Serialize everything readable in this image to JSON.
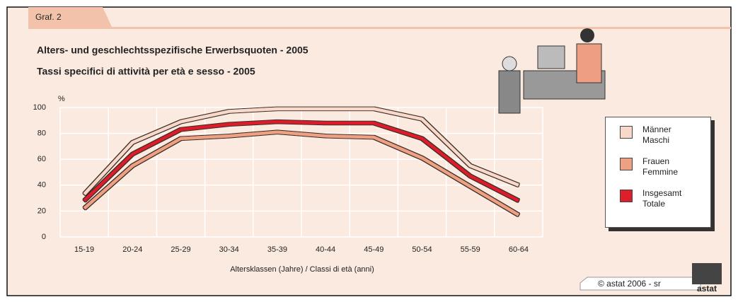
{
  "chart_data": {
    "type": "line",
    "tab": "Graf. 2",
    "title": "Alters- und geschlechtsspezifische Erwerbsquoten - 2005",
    "subtitle": "Tassi specifici di attività per età e sesso - 2005",
    "y_label": "%",
    "x_label": "Altersklassen (Jahre) / Classi di età (anni)",
    "credit": "© astat 2006 - sr",
    "logo": "astat",
    "categories": [
      "15-19",
      "20-24",
      "25-29",
      "30-34",
      "35-39",
      "40-44",
      "45-49",
      "50-54",
      "55-59",
      "60-64"
    ],
    "series": [
      {
        "name": "Männer Maschi",
        "color": "#f8d8c8",
        "values": [
          33,
          73,
          89,
          97,
          99,
          99,
          99,
          91,
          55,
          40
        ]
      },
      {
        "name": "Frauen Femmine",
        "color": "#eea083",
        "values": [
          22,
          55,
          76,
          78,
          81,
          78,
          77,
          61,
          39,
          17
        ]
      },
      {
        "name": "Insgesamt Totale",
        "color": "#dc1f2a",
        "values": [
          28,
          64,
          83,
          87,
          89,
          88,
          88,
          76,
          47,
          28
        ]
      }
    ],
    "ylim": [
      0,
      100
    ],
    "yticks": [
      0,
      20,
      40,
      60,
      80,
      100
    ],
    "grid": true,
    "legend": "right"
  }
}
